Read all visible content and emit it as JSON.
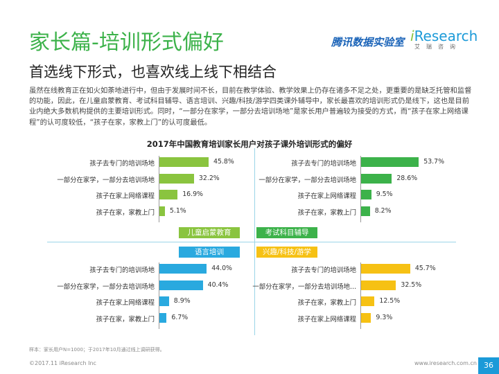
{
  "header": {
    "title": "家长篇-培训形式偏好",
    "subtitle": "首选线下形式，也喜欢线上线下相结合",
    "logo_tencent": "腾讯数据实验室",
    "logo_iresearch_i": "i",
    "logo_iresearch_rest": "Research",
    "logo_iresearch_sub": "艾瑞咨询"
  },
  "body_text": "虽然在线教育正在如火如荼地进行中，但由于发展时间不长，目前在教学体验、教学效果上仍存在诸多不足之处，更重要的是缺乏托管和监督的功能，因此，在儿童启蒙教育、考试科目辅导、语言培训、兴趣/科技/游学四类课外辅导中，家长最喜欢的培训形式仍是线下，这也是目前业内绝大多数机构提供的主要培训形式。同时，“一部分在家学，一部分去培训场地”是家长用户普遍较为接受的方式，而“孩子在家上网络课程”的认可度较低，“孩子在家，家教上门”的认可度最低。",
  "chart_data": {
    "title": "2017年中国教育培训家长用户对孩子课外培训形式的偏好",
    "type": "bar",
    "unit": "%",
    "panels": [
      {
        "name": "儿童启蒙教育",
        "color": "#8ac43f",
        "categories": [
          "孩子去专门的培训场地",
          "一部分在家学，一部分去培训场地",
          "孩子在家上网络课程",
          "孩子在家，家教上门"
        ],
        "values": [
          45.8,
          32.2,
          16.9,
          5.1
        ],
        "labels": [
          "45.8%",
          "32.2%",
          "16.9%",
          "5.1%"
        ]
      },
      {
        "name": "考试科目辅导",
        "color": "#3cb24a",
        "categories": [
          "孩子去专门的培训场地",
          "一部分在家学，一部分去培训场地",
          "孩子在家上网络课程",
          "孩子在家，家教上门"
        ],
        "values": [
          53.7,
          28.6,
          9.5,
          8.2
        ],
        "labels": [
          "53.7%",
          "28.6%",
          "9.5%",
          "8.2%"
        ]
      },
      {
        "name": "语言培训",
        "color": "#29a9df",
        "categories": [
          "孩子去专门的培训场地",
          "一部分在家学，一部分去培训场地",
          "孩子在家上网络课程",
          "孩子在家，家教上门"
        ],
        "values": [
          44.0,
          40.4,
          8.9,
          6.7
        ],
        "labels": [
          "44.0%",
          "40.4%",
          "8.9%",
          "6.7%"
        ]
      },
      {
        "name": "兴趣/科技/游学",
        "color": "#f6c114",
        "categories": [
          "孩子去专门的培训场地",
          "一部分在家学，一部分去培训场地...",
          "孩子在家，家教上门",
          "孩子在家上网络课程"
        ],
        "values": [
          45.7,
          32.5,
          12.5,
          9.3
        ],
        "labels": [
          "45.7%",
          "32.5%",
          "12.5%",
          "9.3%"
        ]
      }
    ]
  },
  "footer": {
    "note": "样本：家长用户N=1000；于2017年10月通过线上调研获得。",
    "left": "©2017.11 iResearch Inc",
    "right": "www.iresearch.com.cn",
    "page": "36"
  }
}
